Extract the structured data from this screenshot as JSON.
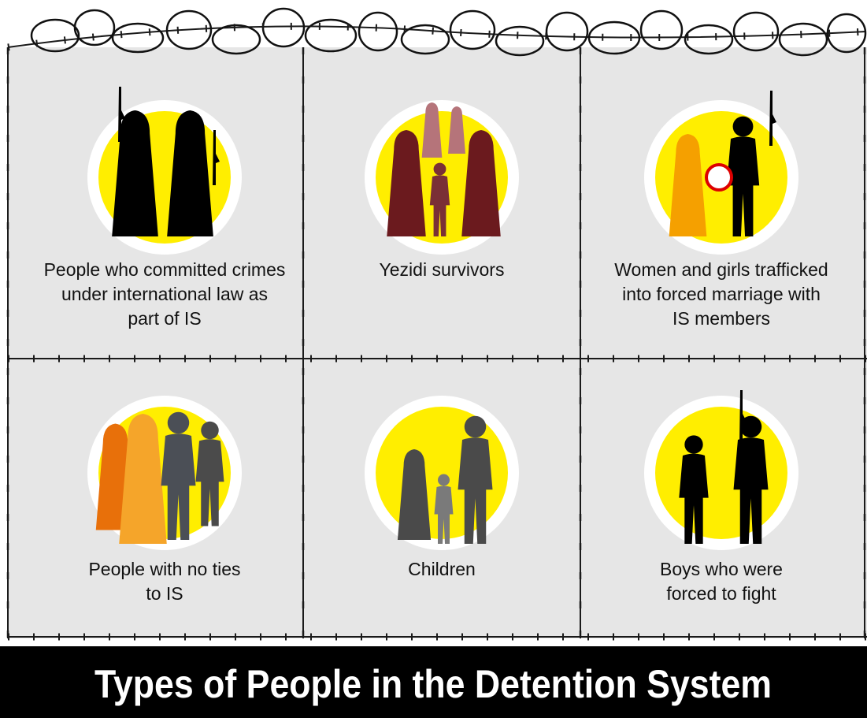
{
  "title": "Types of People in the Detention System",
  "cells": [
    {
      "lines": [
        "People who committed crimes",
        "under international law as",
        "part of IS"
      ]
    },
    {
      "lines": [
        "Yezidi survivors"
      ]
    },
    {
      "lines": [
        "Women and girls trafficked",
        "into forced marriage with",
        "IS members"
      ]
    },
    {
      "lines": [
        "People with no ties",
        "to IS"
      ]
    },
    {
      "lines": [
        "Children"
      ]
    },
    {
      "lines": [
        "Boys who were",
        "forced to fight"
      ]
    }
  ]
}
